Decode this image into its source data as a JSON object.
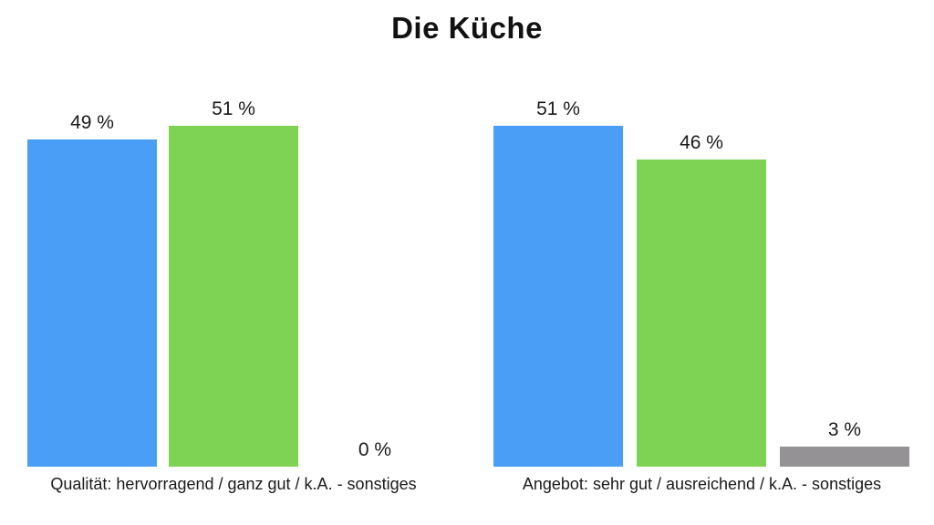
{
  "title": "Die Küche",
  "unit": "%",
  "colors": {
    "blue": "#4A9EF5",
    "green": "#7ED355",
    "gray": "#959295",
    "text": "#1A1A1A",
    "background": "#FFFFFF"
  },
  "chart_data": [
    {
      "type": "bar",
      "caption": "Qualität: hervorragend / ganz gut / k.A. - sonstiges",
      "categories": [
        "hervorragend / ganz gut",
        "k.A.",
        "sonstiges"
      ],
      "ylim": [
        0,
        51
      ],
      "grid": false,
      "legend": false,
      "bars": [
        {
          "label": "49 %",
          "value": 49,
          "color": "blue"
        },
        {
          "label": "51 %",
          "value": 51,
          "color": "green"
        },
        {
          "label": "0 %",
          "value": 0,
          "color": "gray"
        }
      ]
    },
    {
      "type": "bar",
      "caption": "Angebot: sehr gut / ausreichend / k.A. - sonstiges",
      "categories": [
        "sehr gut / ausreichend",
        "k.A.",
        "sonstiges"
      ],
      "ylim": [
        0,
        51
      ],
      "grid": false,
      "legend": false,
      "bars": [
        {
          "label": "51 %",
          "value": 51,
          "color": "blue"
        },
        {
          "label": "46 %",
          "value": 46,
          "color": "green"
        },
        {
          "label": "3 %",
          "value": 3,
          "color": "gray"
        }
      ]
    }
  ]
}
